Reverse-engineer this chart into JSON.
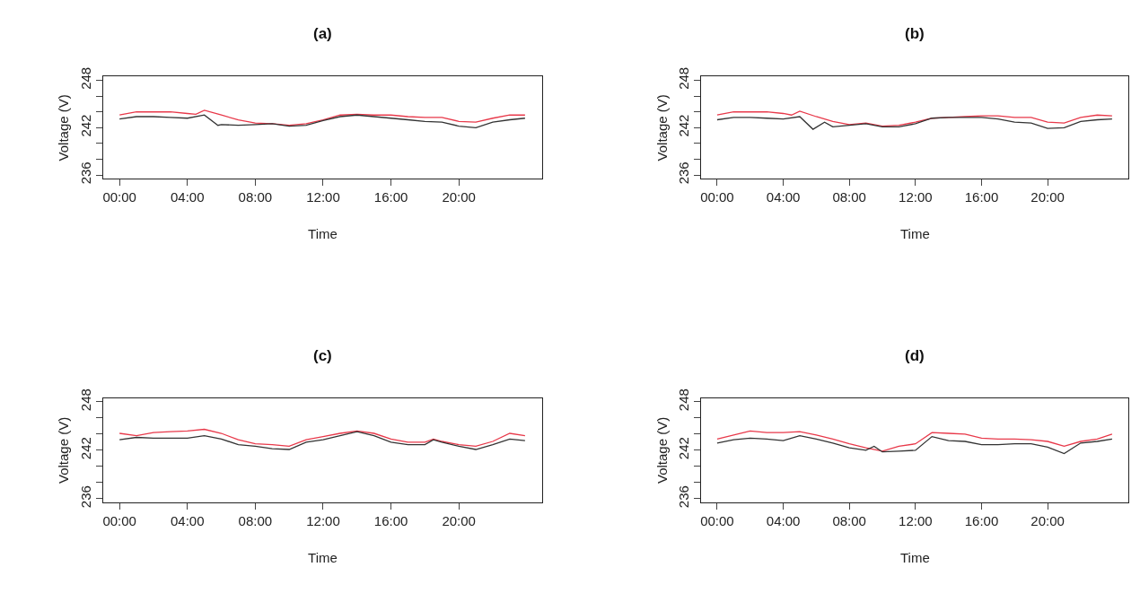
{
  "chart_data": [
    {
      "type": "line",
      "title": "(a)",
      "xlabel": "Time",
      "ylabel": "Voltage (V)",
      "xlim": [
        -0.95,
        24.9
      ],
      "xticks": [
        {
          "value": 0,
          "label": "00:00"
        },
        {
          "value": 4,
          "label": "04:00"
        },
        {
          "value": 8,
          "label": "08:00"
        },
        {
          "value": 12,
          "label": "12:00"
        },
        {
          "value": 16,
          "label": "16:00"
        },
        {
          "value": 20,
          "label": "20:00"
        }
      ],
      "ylim": [
        235.52,
        248.48
      ],
      "yticks": [
        236,
        {
          "value": 238,
          "label": null
        },
        {
          "value": 240,
          "label": null
        },
        242,
        {
          "value": 244,
          "label": null
        },
        {
          "value": 246,
          "label": null
        },
        248
      ],
      "series": [
        {
          "color": "#e8394a",
          "x": [
            0,
            1,
            2,
            3,
            4,
            4.5,
            5,
            6,
            7,
            8,
            9,
            10,
            11,
            12,
            13,
            14,
            15,
            16,
            17,
            18,
            19,
            20,
            21,
            22,
            23,
            23.9
          ],
          "values": [
            243.6,
            244.0,
            244.0,
            244.0,
            243.8,
            243.7,
            244.2,
            243.6,
            243.0,
            242.6,
            242.5,
            242.3,
            242.5,
            243.0,
            243.6,
            243.7,
            243.6,
            243.6,
            243.4,
            243.3,
            243.3,
            242.8,
            242.7,
            243.2,
            243.6,
            243.6
          ]
        },
        {
          "color": "#333333",
          "x": [
            0,
            1,
            2,
            3,
            4,
            5,
            5.8,
            6,
            7,
            8,
            9,
            10,
            11,
            12,
            13,
            14,
            15,
            16,
            17,
            18,
            19,
            20,
            21,
            22,
            23,
            23.9
          ],
          "values": [
            243.1,
            243.4,
            243.4,
            243.3,
            243.2,
            243.6,
            242.3,
            242.4,
            242.3,
            242.4,
            242.5,
            242.2,
            242.3,
            242.9,
            243.4,
            243.6,
            243.4,
            243.2,
            243.0,
            242.8,
            242.7,
            242.2,
            242.0,
            242.7,
            243.0,
            243.2
          ]
        }
      ]
    },
    {
      "type": "line",
      "title": "(b)",
      "xlabel": "Time",
      "ylabel": "Voltage (V)",
      "xlim": [
        -0.95,
        24.9
      ],
      "xticks": [
        {
          "value": 0,
          "label": "00:00"
        },
        {
          "value": 4,
          "label": "04:00"
        },
        {
          "value": 8,
          "label": "08:00"
        },
        {
          "value": 12,
          "label": "12:00"
        },
        {
          "value": 16,
          "label": "16:00"
        },
        {
          "value": 20,
          "label": "20:00"
        }
      ],
      "ylim": [
        235.52,
        248.48
      ],
      "yticks": [
        236,
        {
          "value": 238,
          "label": null
        },
        {
          "value": 240,
          "label": null
        },
        242,
        {
          "value": 244,
          "label": null
        },
        {
          "value": 246,
          "label": null
        },
        248
      ],
      "series": [
        {
          "color": "#e8394a",
          "x": [
            0,
            1,
            2,
            3,
            4,
            4.5,
            5,
            6,
            7,
            8,
            9,
            10,
            11,
            12,
            13,
            14,
            15,
            16,
            17,
            18,
            19,
            20,
            21,
            22,
            23,
            23.9
          ],
          "values": [
            243.6,
            244.0,
            244.0,
            244.0,
            243.8,
            243.6,
            244.1,
            243.4,
            242.8,
            242.4,
            242.6,
            242.2,
            242.3,
            242.7,
            243.2,
            243.3,
            243.4,
            243.5,
            243.5,
            243.3,
            243.3,
            242.7,
            242.6,
            243.3,
            243.6,
            243.5
          ]
        },
        {
          "color": "#333333",
          "x": [
            0,
            1,
            2,
            3,
            4,
            5,
            5.8,
            6.5,
            7,
            8,
            9,
            10,
            11,
            12,
            13,
            14,
            15,
            16,
            17,
            18,
            19,
            20,
            21,
            22,
            23,
            23.9
          ],
          "values": [
            243.0,
            243.3,
            243.3,
            243.2,
            243.1,
            243.4,
            241.8,
            242.7,
            242.1,
            242.3,
            242.5,
            242.1,
            242.1,
            242.5,
            243.2,
            243.3,
            243.3,
            243.3,
            243.1,
            242.7,
            242.6,
            241.9,
            242.0,
            242.8,
            243.0,
            243.1
          ]
        }
      ]
    },
    {
      "type": "line",
      "title": "(c)",
      "xlabel": "Time",
      "ylabel": "Voltage (V)",
      "xlim": [
        -0.95,
        24.9
      ],
      "xticks": [
        {
          "value": 0,
          "label": "00:00"
        },
        {
          "value": 4,
          "label": "04:00"
        },
        {
          "value": 8,
          "label": "08:00"
        },
        {
          "value": 12,
          "label": "12:00"
        },
        {
          "value": 16,
          "label": "16:00"
        },
        {
          "value": 20,
          "label": "20:00"
        }
      ],
      "ylim": [
        235.52,
        248.48
      ],
      "yticks": [
        236,
        {
          "value": 238,
          "label": null
        },
        {
          "value": 240,
          "label": null
        },
        242,
        {
          "value": 244,
          "label": null
        },
        {
          "value": 246,
          "label": null
        },
        248
      ],
      "series": [
        {
          "color": "#e8394a",
          "x": [
            0,
            1,
            2,
            3,
            4,
            5,
            6,
            7,
            8,
            9,
            10,
            11,
            12,
            13,
            14,
            15,
            16,
            17,
            18,
            18.5,
            19,
            20,
            21,
            22,
            23,
            23.9
          ],
          "values": [
            244.1,
            243.8,
            244.2,
            244.3,
            244.4,
            244.6,
            244.1,
            243.3,
            242.8,
            242.7,
            242.5,
            243.3,
            243.7,
            244.1,
            244.4,
            244.1,
            243.4,
            243.0,
            243.0,
            243.4,
            243.1,
            242.7,
            242.5,
            243.1,
            244.1,
            243.8
          ]
        },
        {
          "color": "#333333",
          "x": [
            0,
            1,
            2,
            3,
            4,
            5,
            6,
            7,
            8,
            9,
            10,
            11,
            12,
            13,
            14,
            15,
            16,
            17,
            18,
            18.5,
            19,
            20,
            21,
            22,
            23,
            23.9
          ],
          "values": [
            243.3,
            243.6,
            243.5,
            243.5,
            243.5,
            243.8,
            243.4,
            242.7,
            242.5,
            242.2,
            242.1,
            243.0,
            243.3,
            243.8,
            244.3,
            243.8,
            243.0,
            242.7,
            242.7,
            243.3,
            243.0,
            242.5,
            242.1,
            242.7,
            243.4,
            243.2
          ]
        }
      ]
    },
    {
      "type": "line",
      "title": "(d)",
      "xlabel": "Time",
      "ylabel": "Voltage (V)",
      "xlim": [
        -0.95,
        24.9
      ],
      "xticks": [
        {
          "value": 0,
          "label": "00:00"
        },
        {
          "value": 4,
          "label": "04:00"
        },
        {
          "value": 8,
          "label": "08:00"
        },
        {
          "value": 12,
          "label": "12:00"
        },
        {
          "value": 16,
          "label": "16:00"
        },
        {
          "value": 20,
          "label": "20:00"
        }
      ],
      "ylim": [
        235.52,
        248.48
      ],
      "yticks": [
        236,
        {
          "value": 238,
          "label": null
        },
        {
          "value": 240,
          "label": null
        },
        242,
        {
          "value": 244,
          "label": null
        },
        {
          "value": 246,
          "label": null
        },
        248
      ],
      "series": [
        {
          "color": "#e8394a",
          "x": [
            0,
            1,
            2,
            3,
            4,
            5,
            6,
            7,
            8,
            9,
            10,
            11,
            12,
            13,
            14,
            15,
            16,
            17,
            18,
            19,
            20,
            21,
            22,
            23,
            23.9
          ],
          "values": [
            243.4,
            243.9,
            244.4,
            244.2,
            244.2,
            244.3,
            243.9,
            243.4,
            242.8,
            242.3,
            241.9,
            242.5,
            242.8,
            244.2,
            244.1,
            244.0,
            243.5,
            243.4,
            243.4,
            243.3,
            243.1,
            242.5,
            243.1,
            243.4,
            244.0
          ]
        },
        {
          "color": "#333333",
          "x": [
            0,
            1,
            2,
            3,
            4,
            5,
            6,
            7,
            8,
            9,
            9.5,
            10,
            11,
            12,
            13,
            14,
            15,
            16,
            17,
            18,
            19,
            20,
            21,
            22,
            23,
            23.9
          ],
          "values": [
            242.9,
            243.3,
            243.5,
            243.4,
            243.2,
            243.8,
            243.4,
            242.9,
            242.3,
            242.0,
            242.5,
            241.8,
            241.9,
            242.0,
            243.7,
            243.2,
            243.1,
            242.7,
            242.7,
            242.8,
            242.8,
            242.4,
            241.6,
            242.9,
            243.1,
            243.4
          ]
        }
      ]
    }
  ]
}
